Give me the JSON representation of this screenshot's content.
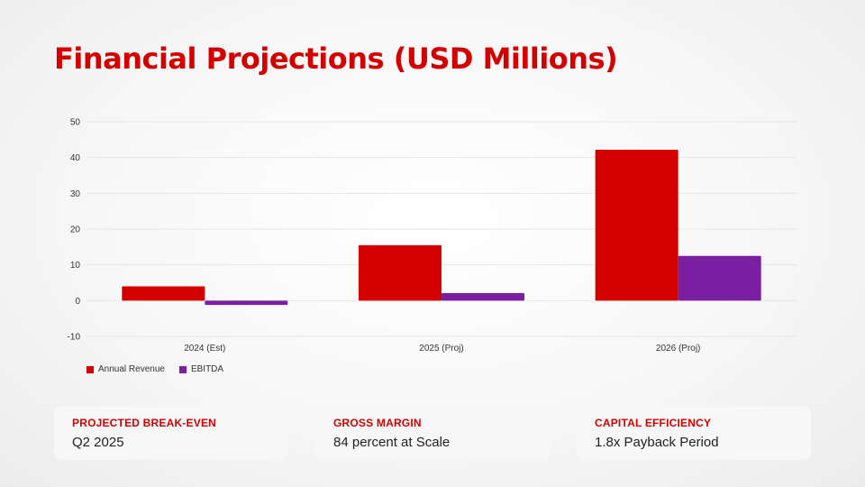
{
  "title": "Financial Projections (USD Millions)",
  "chart_data": {
    "type": "bar",
    "categories": [
      "2024 (Est)",
      "2025 (Proj)",
      "2026 (Proj)"
    ],
    "series": [
      {
        "name": "Annual Revenue",
        "color": "#d40000",
        "values": [
          4,
          15.5,
          42.2
        ]
      },
      {
        "name": "EBITDA",
        "color": "#7a1fa2",
        "values": [
          -1.2,
          2.1,
          12.5
        ]
      }
    ],
    "ylim": [
      -10,
      50
    ],
    "yticks": [
      -10,
      0,
      10,
      20,
      30,
      40,
      50
    ],
    "grid": true,
    "legend": "bottom-left"
  },
  "metrics": [
    {
      "label": "PROJECTED BREAK-EVEN",
      "value": "Q2 2025"
    },
    {
      "label": "GROSS MARGIN",
      "value": "84 percent at Scale"
    },
    {
      "label": "CAPITAL EFFICIENCY",
      "value": "1.8x Payback Period"
    }
  ]
}
